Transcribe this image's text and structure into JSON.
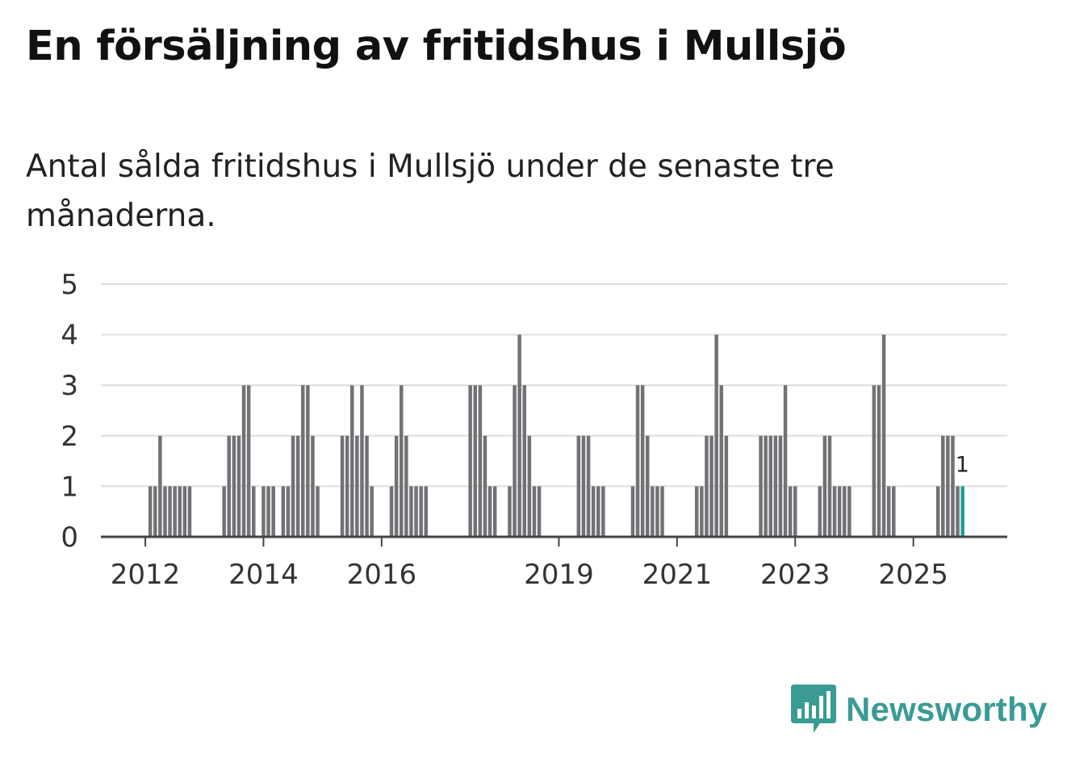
{
  "title": "En försäljning av fritidshus i Mullsjö",
  "subtitle": "Antal sålda fritidshus i Mullsjö under de senaste tre månaderna.",
  "brand": {
    "name": "Newsworthy",
    "color": "#3a9b94"
  },
  "colors": {
    "bar": "#727176",
    "highlight": "#1f9e94",
    "grid": "#dedede",
    "axis": "#444444"
  },
  "chart_data": {
    "type": "bar",
    "title": "",
    "xlabel": "",
    "ylabel": "",
    "ylim": [
      0,
      5
    ],
    "yticks": [
      "0",
      "1",
      "2",
      "3",
      "4",
      "5"
    ],
    "xticks": [
      {
        "label": "2012",
        "index": 8
      },
      {
        "label": "2014",
        "index": 32
      },
      {
        "label": "2016",
        "index": 56
      },
      {
        "label": "2019",
        "index": 92
      },
      {
        "label": "2021",
        "index": 116
      },
      {
        "label": "2023",
        "index": 140
      },
      {
        "label": "2025",
        "index": 164
      }
    ],
    "x_start": "2011-01",
    "values": [
      0,
      0,
      0,
      0,
      0,
      0,
      0,
      0,
      0,
      1,
      1,
      2,
      1,
      1,
      1,
      1,
      1,
      1,
      0,
      0,
      0,
      0,
      0,
      0,
      1,
      2,
      2,
      2,
      3,
      3,
      1,
      0,
      1,
      1,
      1,
      0,
      1,
      1,
      2,
      2,
      3,
      3,
      2,
      1,
      0,
      0,
      0,
      0,
      2,
      2,
      3,
      2,
      3,
      2,
      1,
      0,
      0,
      0,
      1,
      2,
      3,
      2,
      1,
      1,
      1,
      1,
      0,
      0,
      0,
      0,
      0,
      0,
      0,
      0,
      3,
      3,
      3,
      2,
      1,
      1,
      0,
      0,
      1,
      3,
      4,
      3,
      2,
      1,
      1,
      0,
      0,
      0,
      0,
      0,
      0,
      0,
      2,
      2,
      2,
      1,
      1,
      1,
      0,
      0,
      0,
      0,
      0,
      1,
      3,
      3,
      2,
      1,
      1,
      1,
      0,
      0,
      0,
      0,
      0,
      0,
      1,
      1,
      2,
      2,
      4,
      3,
      2,
      0,
      0,
      0,
      0,
      0,
      0,
      2,
      2,
      2,
      2,
      2,
      3,
      1,
      1,
      0,
      0,
      0,
      0,
      1,
      2,
      2,
      1,
      1,
      1,
      1,
      0,
      0,
      0,
      0,
      3,
      3,
      4,
      1,
      1,
      0,
      0,
      0,
      0,
      0,
      0,
      0,
      0,
      1,
      2,
      2,
      2,
      1,
      1
    ],
    "highlight_index": 174,
    "highlight_label": "1"
  }
}
